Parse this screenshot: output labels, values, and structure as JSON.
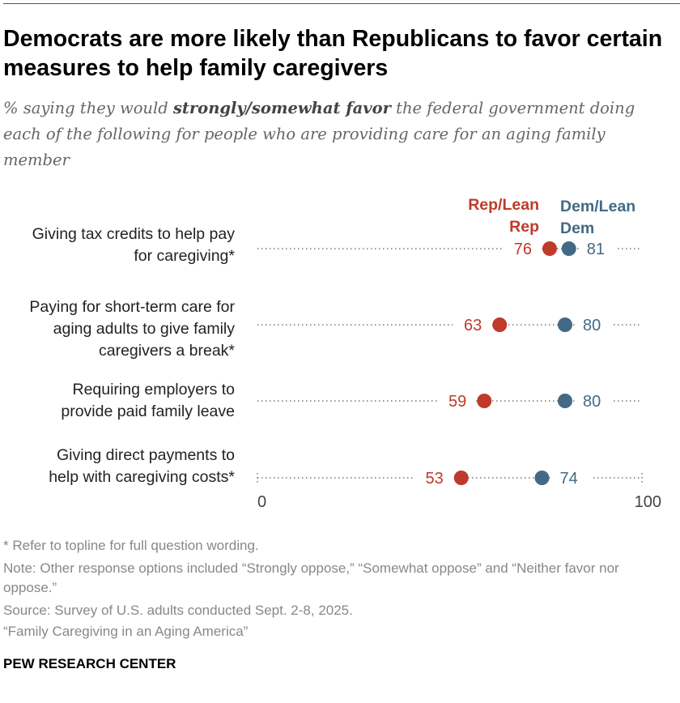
{
  "title": "Democrats are more likely than Republicans to favor certain measures to help family caregivers",
  "subtitle": {
    "pre": "% saying they would ",
    "bold": "strongly/somewhat favor",
    "post": " the federal government doing each of the following for people who are providing care for an aging family member"
  },
  "chart_data": {
    "type": "dot",
    "categories": [
      "Giving tax credits to help pay for caregiving*",
      "Paying for short-term care for aging adults to give family caregivers a break*",
      "Requiring employers to provide paid family leave",
      "Giving direct payments to help with caregiving costs*"
    ],
    "series": [
      {
        "name": "Rep/Lean Rep",
        "values": [
          76,
          63,
          59,
          53
        ],
        "color": "#bf3a2b"
      },
      {
        "name": "Dem/Lean Dem",
        "values": [
          81,
          80,
          80,
          74
        ],
        "color": "#436a85"
      }
    ],
    "xlim": [
      0,
      100
    ],
    "tick_labels": [
      "0",
      "100"
    ],
    "legend": "top, above first row"
  },
  "legend": {
    "rep_line1": "Rep/Lean",
    "rep_line2": "Rep",
    "dem_line1": "Dem/Lean",
    "dem_line2": "Dem"
  },
  "footnotes": [
    "* Refer to topline for full question wording.",
    "Note: Other response options included “Strongly oppose,” “Somewhat oppose” and “Neither favor nor oppose.”",
    "Source: Survey of U.S. adults conducted Sept. 2-8, 2025.",
    "“Family Caregiving in an Aging America”"
  ],
  "brand": "PEW RESEARCH CENTER"
}
